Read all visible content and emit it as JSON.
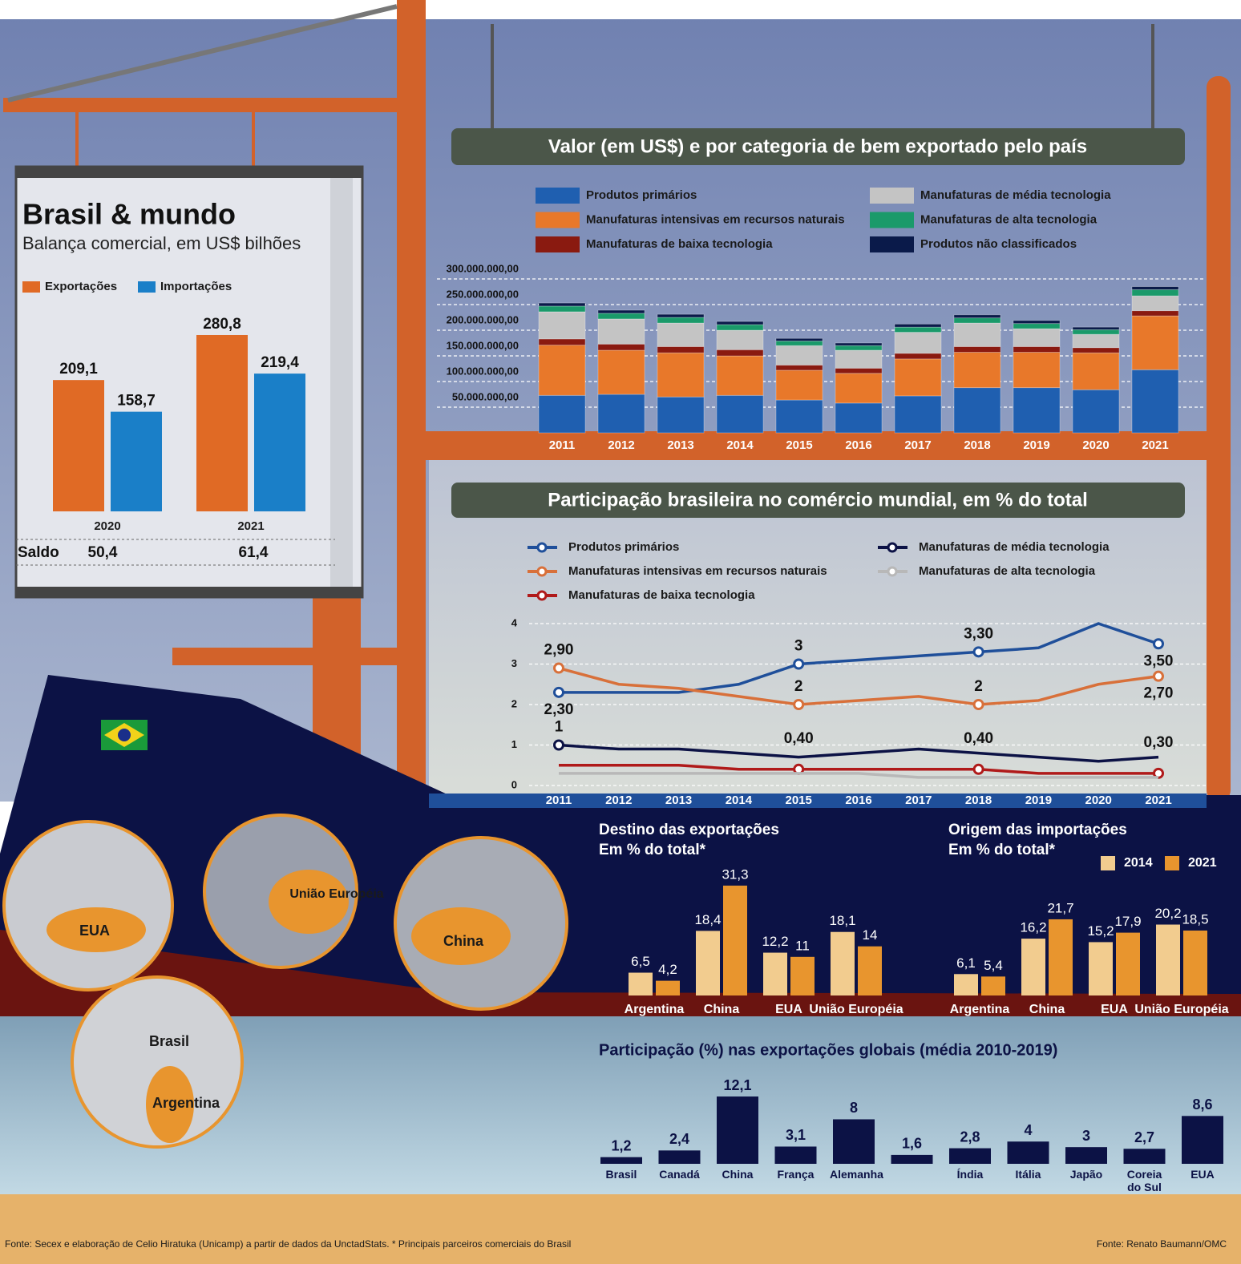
{
  "chart_data": [
    {
      "type": "bar",
      "title": "Brasil & mundo",
      "subtitle": "Balança comercial, em US$ bilhões",
      "categories": [
        "2020",
        "2021"
      ],
      "series": [
        {
          "name": "Exportações",
          "color": "#e06a25",
          "values": [
            209.1,
            280.8
          ],
          "value_labels": [
            "209,1",
            "280,8"
          ]
        },
        {
          "name": "Importações",
          "color": "#1a7fc8",
          "values": [
            158.7,
            219.4
          ],
          "value_labels": [
            "158,7",
            "219,4"
          ]
        }
      ],
      "saldo": {
        "label": "Saldo",
        "values": [
          50.4,
          61.4
        ],
        "value_labels": [
          "50,4",
          "61,4"
        ]
      }
    },
    {
      "type": "bar",
      "stacked": true,
      "title": "Valor (em US$) e por categoria de bem exportado pelo país",
      "categories": [
        "2011",
        "2012",
        "2013",
        "2014",
        "2015",
        "2016",
        "2017",
        "2018",
        "2019",
        "2020",
        "2021"
      ],
      "series": [
        {
          "name": "Produtos primários",
          "color": "#1f5fb0",
          "values": [
            73000000,
            75000000,
            70000000,
            73000000,
            64000000,
            58000000,
            72000000,
            88000000,
            88000000,
            84000000,
            123000000
          ]
        },
        {
          "name": "Manufaturas intensivas em recursos naturais",
          "color": "#e8782a",
          "values": [
            98000000,
            86000000,
            86000000,
            77000000,
            58000000,
            58000000,
            72000000,
            69000000,
            69000000,
            72000000,
            105000000
          ]
        },
        {
          "name": "Manufaturas de baixa tecnologia",
          "color": "#8a1a10",
          "values": [
            12000000,
            12000000,
            12000000,
            12000000,
            10000000,
            10000000,
            11000000,
            11000000,
            11000000,
            10000000,
            10000000
          ]
        },
        {
          "name": "Manufaturas de média tecnologia",
          "color": "#c4c4c4",
          "values": [
            53000000,
            49000000,
            46000000,
            38000000,
            38000000,
            35000000,
            41000000,
            46000000,
            35000000,
            26000000,
            29000000
          ]
        },
        {
          "name": "Manufaturas de alta tecnologia",
          "color": "#1a9a6a",
          "values": [
            11000000,
            11000000,
            11000000,
            11000000,
            9000000,
            9000000,
            10000000,
            10000000,
            10000000,
            9000000,
            12000000
          ]
        },
        {
          "name": "Produtos não classificados",
          "color": "#0a1a4a",
          "values": [
            6000000,
            6000000,
            6000000,
            6000000,
            5000000,
            5000000,
            6000000,
            6000000,
            6000000,
            5000000,
            6000000
          ]
        }
      ],
      "ylim": [
        0,
        300000000
      ],
      "yticks": [
        {
          "value": 50000000,
          "label": "50.000.000,00"
        },
        {
          "value": 100000000,
          "label": "100.000.000,00"
        },
        {
          "value": 150000000,
          "label": "150.000.000,00"
        },
        {
          "value": 200000000,
          "label": "200.000.000,00"
        },
        {
          "value": 250000000,
          "label": "250.000.000,00"
        },
        {
          "value": 300000000,
          "label": "300.000.000,00"
        }
      ],
      "grid": true
    },
    {
      "type": "line",
      "title": "Participação brasileira no comércio mundial, em % do total",
      "categories": [
        "2011",
        "2012",
        "2013",
        "2014",
        "2015",
        "2016",
        "2017",
        "2018",
        "2019",
        "2020",
        "2021"
      ],
      "series": [
        {
          "name": "Produtos primários",
          "color": "#1f4f9a",
          "values": [
            2.3,
            2.3,
            2.3,
            2.5,
            3.0,
            3.1,
            3.2,
            3.3,
            3.4,
            4.0,
            3.5
          ],
          "value_labels": [
            "2,30",
            null,
            null,
            null,
            "3",
            null,
            null,
            "3,30",
            null,
            null,
            "3,50"
          ]
        },
        {
          "name": "Manufaturas intensivas em recursos naturais",
          "color": "#d8703a",
          "values": [
            2.9,
            2.5,
            2.4,
            2.2,
            2.0,
            2.1,
            2.2,
            2.0,
            2.1,
            2.5,
            2.7
          ],
          "value_labels": [
            "2,90",
            null,
            null,
            null,
            "2",
            null,
            null,
            "2",
            null,
            null,
            "2,70"
          ]
        },
        {
          "name": "Manufaturas de baixa tecnologia",
          "color": "#b01a1a",
          "values": [
            0.5,
            0.5,
            0.5,
            0.4,
            0.4,
            0.4,
            0.4,
            0.4,
            0.3,
            0.3,
            0.3
          ],
          "value_labels": [
            null,
            null,
            null,
            null,
            "0,40",
            null,
            null,
            "0,40",
            null,
            null,
            "0,30"
          ]
        },
        {
          "name": "Manufaturas de média tecnologia",
          "color": "#0c1245",
          "values": [
            1.0,
            0.9,
            0.9,
            0.8,
            0.7,
            0.8,
            0.9,
            0.8,
            0.7,
            0.6,
            0.7
          ],
          "value_labels": [
            "1",
            null,
            null,
            null,
            null,
            null,
            null,
            null,
            null,
            null,
            null
          ]
        },
        {
          "name": "Manufaturas de alta tecnologia",
          "color": "#b8b8b8",
          "values": [
            0.3,
            0.3,
            0.3,
            0.3,
            0.3,
            0.3,
            0.2,
            0.2,
            0.2,
            0.2,
            0.2
          ]
        }
      ],
      "ylim": [
        0,
        4
      ],
      "yticks": [
        0,
        1,
        2,
        3,
        4
      ],
      "grid": true
    },
    {
      "type": "bar",
      "title": "Destino das exportações",
      "subtitle": "Em % do total*",
      "categories": [
        "Argentina",
        "China",
        "EUA",
        "União Européia"
      ],
      "series": [
        {
          "color": "#f2cc8f",
          "values": [
            6.5,
            18.4,
            12.2,
            18.1
          ],
          "value_labels": [
            "6,5",
            "18,4",
            "12,2",
            "18,1"
          ]
        },
        {
          "color": "#e8952e",
          "values": [
            4.2,
            31.3,
            11,
            14
          ],
          "value_labels": [
            "4,2",
            "31,3",
            "11",
            "14"
          ]
        }
      ]
    },
    {
      "type": "bar",
      "title": "Origem das importações",
      "subtitle": "Em % do total*",
      "categories": [
        "Argentina",
        "China",
        "EUA",
        "União Européia"
      ],
      "series": [
        {
          "name": "2014",
          "color": "#f2cc8f",
          "values": [
            6.1,
            16.2,
            15.2,
            20.2
          ],
          "value_labels": [
            "6,1",
            "16,2",
            "15,2",
            "20,2"
          ]
        },
        {
          "name": "2021",
          "color": "#e8952e",
          "values": [
            5.4,
            21.7,
            17.9,
            18.5
          ],
          "value_labels": [
            "5,4",
            "21,7",
            "17,9",
            "18,5"
          ]
        }
      ]
    },
    {
      "type": "bar",
      "title": "Participação (%) nas exportações globais (média 2010-2019)",
      "categories": [
        "Brasil",
        "Canadá",
        "China",
        "França",
        "Alemanha",
        null,
        "Índia",
        "Itália",
        "Japão",
        "Coreia do Sul",
        "EUA"
      ],
      "values": [
        1.2,
        2.4,
        12.1,
        3.1,
        8,
        1.6,
        2.8,
        4,
        3,
        2.7,
        8.6
      ],
      "value_labels": [
        "1,2",
        "2,4",
        "12,1",
        "3,1",
        "8",
        "1,6",
        "2,8",
        "4",
        "3",
        "2,7",
        "8,6"
      ],
      "color": "#0c1245"
    }
  ],
  "map_labels": [
    "EUA",
    "União Européia",
    "China",
    "Brasil",
    "Argentina"
  ],
  "footer": {
    "left": "Fonte: Secex e elaboração de Celio Hiratuka (Unicamp) a partir de dados da UnctadStats. * Principais parceiros comerciais do Brasil",
    "right": "Fonte: Renato Baumann/OMC"
  }
}
